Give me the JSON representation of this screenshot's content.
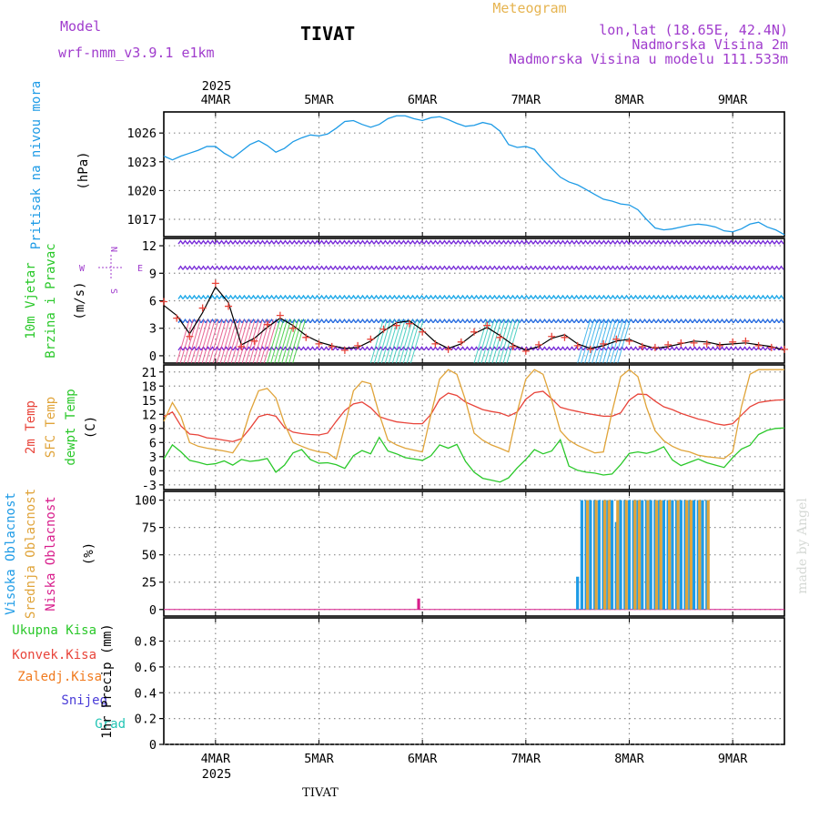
{
  "header": {
    "model_label": "Model",
    "model_name": "wrf-nmm_v3.9.1 e1km",
    "location": "TIVAT",
    "title": "Meteogram",
    "lonlat": "lon,lat (18.65E, 42.4N)",
    "elevation": "Nadmorska Visina 2m",
    "model_elevation": "Nadmorska Visina u modelu 111.533m",
    "watermark": "made by Angel",
    "footer_location": "TIVAT"
  },
  "time_axis": {
    "year": "2025",
    "labels": [
      "4MAR",
      "5MAR",
      "6MAR",
      "7MAR",
      "8MAR",
      "9MAR"
    ],
    "start_hour": -12,
    "end_hour": 132
  },
  "colors": {
    "pressure": "#1e9be6",
    "temp2m": "#e8443a",
    "sfc_temp": "#e0a43a",
    "dewpoint": "#2ac82a",
    "high_cloud": "#1e9be6",
    "mid_cloud": "#e0a43a",
    "low_cloud": "#d81e8c",
    "total_precip": "#2ac82a",
    "conv_precip": "#e8443a",
    "frz_precip": "#f07a1e",
    "snow": "#4a3cd8",
    "hail": "#22c4b4",
    "compass": "#a03ccd"
  },
  "chart_data": [
    {
      "type": "line",
      "panel": "pressure",
      "ylabel_lines": [
        "Pritisak na nivou mora"
      ],
      "unit": "(hPa)",
      "yticks": [
        1017,
        1020,
        1023,
        1026
      ],
      "ylim": [
        1015.2,
        1028.2
      ],
      "grid": true,
      "x": [
        -12,
        -10,
        -8,
        -6,
        -4,
        -2,
        0,
        2,
        4,
        6,
        8,
        10,
        12,
        14,
        16,
        18,
        20,
        22,
        24,
        26,
        28,
        30,
        32,
        34,
        36,
        38,
        40,
        42,
        44,
        46,
        48,
        50,
        52,
        54,
        56,
        58,
        60,
        62,
        64,
        66,
        68,
        70,
        72,
        74,
        76,
        78,
        80,
        82,
        84,
        86,
        88,
        90,
        92,
        94,
        96,
        98,
        100,
        102,
        104,
        106,
        108,
        110,
        112,
        114,
        116,
        118,
        120,
        122,
        124,
        126,
        128,
        130,
        132
      ],
      "series": [
        {
          "key": "slp",
          "values": [
            1023.6,
            1023.2,
            1023.6,
            1023.9,
            1024.2,
            1024.6,
            1024.6,
            1023.9,
            1023.4,
            1024.1,
            1024.8,
            1025.2,
            1024.7,
            1024.0,
            1024.4,
            1025.1,
            1025.5,
            1025.8,
            1025.7,
            1025.9,
            1026.5,
            1027.2,
            1027.3,
            1026.9,
            1026.6,
            1026.9,
            1027.5,
            1027.8,
            1027.8,
            1027.5,
            1027.3,
            1027.6,
            1027.7,
            1027.4,
            1027.0,
            1026.7,
            1026.8,
            1027.1,
            1026.9,
            1026.2,
            1024.8,
            1024.5,
            1024.6,
            1024.3,
            1023.2,
            1022.3,
            1021.4,
            1020.9,
            1020.6,
            1020.1,
            1019.6,
            1019.1,
            1018.9,
            1018.6,
            1018.5,
            1018.0,
            1017.0,
            1016.1,
            1015.9,
            1016.0,
            1016.2,
            1016.4,
            1016.5,
            1016.4,
            1016.2,
            1015.8,
            1015.7,
            1016.0,
            1016.5,
            1016.7,
            1016.2,
            1015.9,
            1015.4
          ]
        }
      ]
    },
    {
      "type": "line",
      "panel": "wind",
      "ylabel_lines": [
        "10m Vjetar",
        "Brzina i Pravac"
      ],
      "unit": "(m/s)",
      "compass": {
        "north": "N",
        "south": "S",
        "east": "E",
        "west": "W"
      },
      "yticks": [
        0,
        3,
        6,
        9,
        12
      ],
      "ylim": [
        -0.8,
        12.8
      ],
      "grid": true,
      "x": [
        -12,
        -9,
        -6,
        -3,
        0,
        3,
        6,
        9,
        12,
        15,
        18,
        21,
        24,
        27,
        30,
        33,
        36,
        39,
        42,
        45,
        48,
        51,
        54,
        57,
        60,
        63,
        66,
        69,
        72,
        75,
        78,
        81,
        84,
        87,
        90,
        93,
        96,
        99,
        102,
        105,
        108,
        111,
        114,
        117,
        120,
        123,
        126,
        129,
        132
      ],
      "series": [
        {
          "key": "speed",
          "values": [
            5.5,
            4.4,
            2.4,
            4.7,
            7.5,
            5.8,
            1.2,
            1.9,
            3.1,
            4.1,
            3.3,
            2.2,
            1.5,
            1.1,
            0.8,
            0.9,
            1.6,
            2.7,
            3.6,
            3.8,
            2.8,
            1.5,
            0.8,
            1.3,
            2.4,
            3.1,
            2.2,
            1.2,
            0.6,
            1.0,
            1.9,
            2.3,
            1.3,
            0.8,
            1.1,
            1.6,
            1.8,
            1.2,
            0.8,
            1.0,
            1.3,
            1.6,
            1.5,
            1.2,
            1.3,
            1.4,
            1.2,
            1.0,
            0.6
          ]
        },
        {
          "key": "sample_speed",
          "values": [
            5.9,
            4.1,
            2.1,
            5.2,
            7.9,
            5.4,
            1.0,
            1.6,
            3.4,
            4.4,
            3.0,
            2.0,
            1.3,
            1.0,
            0.6,
            1.1,
            1.8,
            2.9,
            3.3,
            3.5,
            2.6,
            1.3,
            0.7,
            1.5,
            2.6,
            3.3,
            2.0,
            1.0,
            0.5,
            1.2,
            2.1,
            2.0,
            1.1,
            0.7,
            1.3,
            1.8,
            1.6,
            1.0,
            0.9,
            1.2,
            1.4,
            1.4,
            1.3,
            1.1,
            1.5,
            1.6,
            1.1,
            0.9,
            0.7
          ]
        }
      ]
    },
    {
      "type": "line",
      "panel": "temperature",
      "ylabel_lines": [
        "2m Temp",
        "SFC Temp",
        "dewpt Temp"
      ],
      "unit": "(C)",
      "yticks": [
        -3,
        0,
        3,
        6,
        9,
        12,
        15,
        18,
        21
      ],
      "ylim": [
        -4,
        22.5
      ],
      "grid": true,
      "x": [
        -12,
        -10,
        -8,
        -6,
        -4,
        -2,
        0,
        2,
        4,
        6,
        8,
        10,
        12,
        14,
        16,
        18,
        20,
        22,
        24,
        26,
        28,
        30,
        32,
        34,
        36,
        38,
        40,
        42,
        44,
        46,
        48,
        50,
        52,
        54,
        56,
        58,
        60,
        62,
        64,
        66,
        68,
        70,
        72,
        74,
        76,
        78,
        80,
        82,
        84,
        86,
        88,
        90,
        92,
        94,
        96,
        98,
        100,
        102,
        104,
        106,
        108,
        110,
        112,
        114,
        116,
        118,
        120,
        122,
        124,
        126,
        128,
        130,
        132
      ],
      "series": [
        {
          "key": "t2m",
          "values": [
            11.5,
            12.5,
            9.5,
            7.8,
            7.6,
            7.0,
            6.8,
            6.5,
            6.2,
            6.8,
            9.0,
            11.5,
            12.0,
            11.6,
            9.2,
            8.2,
            7.9,
            7.7,
            7.6,
            8.0,
            10.5,
            12.8,
            14.2,
            14.6,
            13.4,
            11.5,
            10.9,
            10.4,
            10.2,
            10.0,
            10.0,
            12.0,
            15.2,
            16.5,
            16.0,
            14.6,
            13.8,
            13.0,
            12.6,
            12.3,
            11.6,
            12.5,
            15.2,
            16.6,
            16.9,
            15.3,
            13.5,
            13.0,
            12.6,
            12.2,
            11.9,
            11.6,
            11.6,
            12.3,
            15.0,
            16.3,
            16.2,
            14.8,
            13.6,
            13.0,
            12.2,
            11.6,
            11.0,
            10.6,
            10.0,
            9.7,
            10.0,
            11.8,
            13.6,
            14.5,
            14.8,
            15.0,
            15.1
          ]
        },
        {
          "key": "sfc",
          "values": [
            10.5,
            14.5,
            11.5,
            6.0,
            5.2,
            4.8,
            4.5,
            4.2,
            3.8,
            6.5,
            12.5,
            17.0,
            17.5,
            15.5,
            10.0,
            6.0,
            5.2,
            4.5,
            4.0,
            3.8,
            2.5,
            9.5,
            17.0,
            19.0,
            18.5,
            12.0,
            6.5,
            5.5,
            4.8,
            4.4,
            4.0,
            12.0,
            19.5,
            21.5,
            20.5,
            15.0,
            8.0,
            6.5,
            5.5,
            4.8,
            4.0,
            12.5,
            19.5,
            21.5,
            20.5,
            15.0,
            8.5,
            6.5,
            5.4,
            4.6,
            3.8,
            4.0,
            12.5,
            20.0,
            21.5,
            20.0,
            13.5,
            8.5,
            6.4,
            5.2,
            4.4,
            4.0,
            3.3,
            3.0,
            2.8,
            2.6,
            4.0,
            13.5,
            20.5,
            21.5,
            21.5,
            21.5,
            21.5
          ]
        },
        {
          "key": "dewpt",
          "values": [
            2.5,
            5.5,
            4.0,
            2.2,
            1.8,
            1.3,
            1.5,
            2.1,
            1.2,
            2.4,
            2.0,
            2.2,
            2.6,
            -0.3,
            1.2,
            3.8,
            4.5,
            2.4,
            1.6,
            1.7,
            1.3,
            0.5,
            3.2,
            4.3,
            3.6,
            7.1,
            4.2,
            3.6,
            2.8,
            2.5,
            2.2,
            3.2,
            5.5,
            4.8,
            5.6,
            2.0,
            -0.3,
            -1.6,
            -2.0,
            -2.4,
            -1.5,
            0.6,
            2.4,
            4.5,
            3.6,
            4.2,
            6.6,
            1.0,
            0.1,
            -0.3,
            -0.5,
            -0.9,
            -0.7,
            1.3,
            3.7,
            4.0,
            3.7,
            4.2,
            5.1,
            2.3,
            1.1,
            1.8,
            2.5,
            1.7,
            1.2,
            0.7,
            2.8,
            4.6,
            5.4,
            7.7,
            8.6,
            9.0,
            9.1
          ]
        }
      ]
    },
    {
      "type": "bar",
      "panel": "clouds",
      "ylabel_lines": [
        "Visoka Oblacnost",
        "Srednja Oblacnost",
        "Niska Oblacnost"
      ],
      "unit": "(%)",
      "yticks": [
        0,
        25,
        50,
        75,
        100
      ],
      "ylim": [
        -6,
        108
      ],
      "grid": true,
      "x": [
        46.5,
        84.0,
        85.0,
        86.0,
        87.0,
        88.0,
        89.0,
        90.0,
        91.0,
        92.0,
        93.0,
        94.0,
        95.0,
        96.0,
        97.0,
        98.0,
        99.0,
        100.0,
        101.0,
        102.0,
        103.0,
        104.0,
        105.0,
        106.0,
        107.0,
        108.0,
        109.0,
        110.0,
        111.0,
        112.0,
        113.0,
        114.0
      ],
      "series": [
        {
          "key": "high",
          "values": [
            0,
            30,
            100,
            100,
            100,
            100,
            100,
            100,
            100,
            100,
            80,
            100,
            100,
            100,
            100,
            100,
            100,
            100,
            100,
            100,
            100,
            100,
            100,
            100,
            100,
            100,
            100,
            100,
            100,
            100,
            100,
            100
          ]
        },
        {
          "key": "mid",
          "values": [
            0,
            0,
            0,
            100,
            0,
            100,
            0,
            100,
            100,
            0,
            100,
            0,
            100,
            0,
            100,
            100,
            0,
            100,
            0,
            100,
            100,
            0,
            100,
            0,
            100,
            0,
            100,
            100,
            0,
            100,
            0,
            100
          ]
        },
        {
          "key": "low",
          "values": [
            10,
            0,
            0,
            0,
            0,
            0,
            0,
            0,
            0,
            0,
            0,
            0,
            0,
            0,
            0,
            0,
            0,
            0,
            0,
            0,
            0,
            0,
            0,
            0,
            0,
            0,
            0,
            0,
            0,
            0,
            0,
            0
          ]
        }
      ]
    },
    {
      "type": "bar",
      "panel": "precip",
      "legend_lines": [
        "Ukupna Kisa",
        "Konvek.Kisa",
        "Zaledj.Kisa",
        "Snijeg",
        "Grad"
      ],
      "ylabel": "1hr Precip (mm)",
      "yticks": [
        "0",
        "0.2",
        "0.4",
        "0.6",
        "0.8"
      ],
      "ylim": [
        0,
        0.98
      ],
      "grid": true,
      "values": [
        0,
        0,
        0,
        0,
        0
      ]
    }
  ]
}
